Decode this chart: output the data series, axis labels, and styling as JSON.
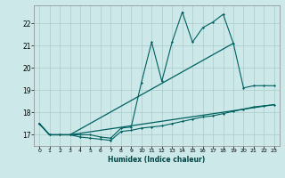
{
  "xlabel": "Humidex (Indice chaleur)",
  "bg_color": "#cce8e8",
  "grid_color": "#aacccc",
  "line_color": "#006060",
  "ylim": [
    16.5,
    22.8
  ],
  "xlim": [
    -0.5,
    23.5
  ],
  "yticks": [
    17,
    18,
    19,
    20,
    21,
    22
  ],
  "xticks": [
    0,
    1,
    2,
    3,
    4,
    5,
    6,
    7,
    8,
    9,
    10,
    11,
    12,
    13,
    14,
    15,
    16,
    17,
    18,
    19,
    20,
    21,
    22,
    23
  ],
  "s_slow_x": [
    0,
    1,
    2,
    3,
    4,
    5,
    6,
    7,
    8,
    9,
    10,
    11,
    12,
    13,
    14,
    15,
    16,
    17,
    18,
    19,
    20,
    21,
    22,
    23
  ],
  "s_slow_y": [
    17.5,
    17.0,
    17.0,
    17.0,
    16.9,
    16.85,
    16.8,
    16.75,
    17.15,
    17.2,
    17.3,
    17.35,
    17.4,
    17.5,
    17.6,
    17.7,
    17.8,
    17.85,
    17.95,
    18.05,
    18.15,
    18.25,
    18.3,
    18.35
  ],
  "s_jagged_x": [
    0,
    1,
    2,
    3,
    4,
    5,
    6,
    7,
    8,
    9,
    10,
    11,
    12,
    13,
    14,
    15,
    16,
    17,
    18,
    19,
    20,
    21,
    22,
    23
  ],
  "s_jagged_y": [
    17.5,
    17.0,
    17.0,
    17.0,
    17.0,
    17.0,
    16.9,
    16.85,
    17.3,
    17.35,
    19.35,
    21.15,
    19.4,
    21.15,
    22.5,
    21.15,
    21.8,
    22.05,
    22.4,
    21.1,
    19.1,
    19.2,
    19.2,
    19.2
  ],
  "s_line1_x": [
    0,
    1,
    2,
    3,
    19
  ],
  "s_line1_y": [
    17.5,
    17.0,
    17.0,
    17.0,
    21.1
  ],
  "s_line2_x": [
    0,
    1,
    2,
    3,
    23
  ],
  "s_line2_y": [
    17.5,
    17.0,
    17.0,
    17.0,
    18.35
  ]
}
